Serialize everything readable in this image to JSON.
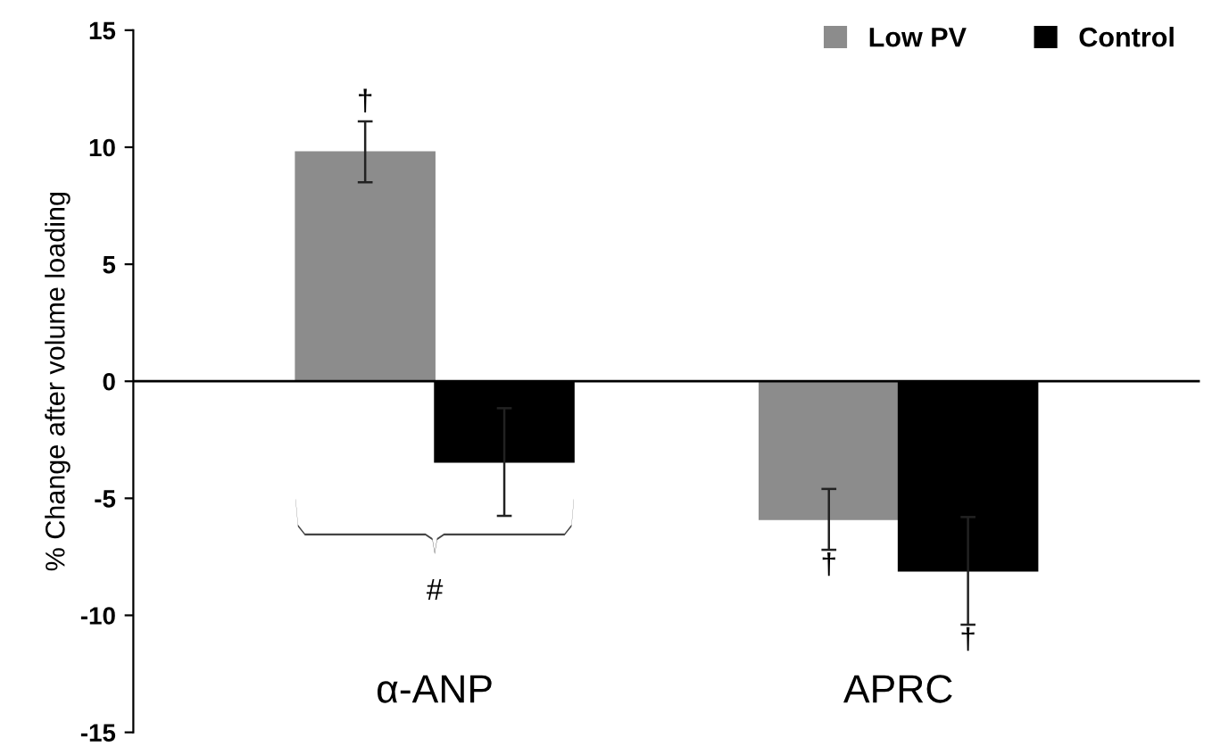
{
  "chart_data": {
    "type": "bar",
    "ylabel": "% Change after volume loading",
    "categories": [
      "α-ANP",
      "APRC"
    ],
    "series": [
      {
        "name": "Low PV",
        "color": "#8c8c8c",
        "values": [
          9.8,
          -5.9
        ],
        "errors": [
          1.3,
          1.3
        ]
      },
      {
        "name": "Control",
        "color": "#000000",
        "values": [
          -3.45,
          -8.1
        ],
        "errors": [
          2.3,
          2.3
        ]
      }
    ],
    "ylim": [
      -15,
      15
    ],
    "yticks": [
      -15,
      -10,
      -5,
      0,
      5,
      10,
      15
    ],
    "legend": "top right",
    "ref_lines": [
      {
        "axis": "y",
        "value": 0,
        "color": "#000000"
      }
    ],
    "annotations": [
      "†",
      "†",
      "†",
      "#"
    ]
  }
}
